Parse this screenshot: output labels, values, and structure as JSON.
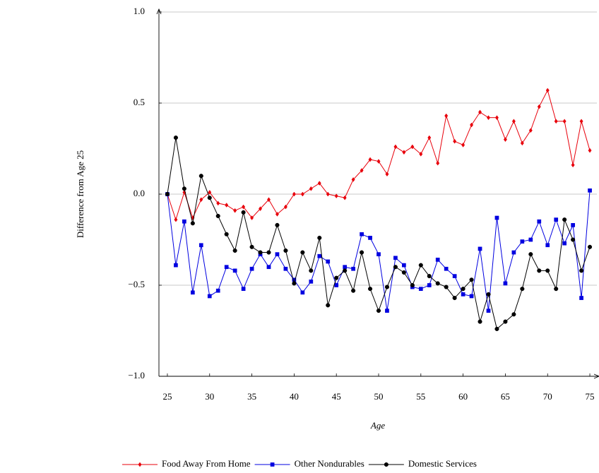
{
  "chart_data": {
    "type": "line",
    "xlabel": "Age",
    "ylabel": "Difference from Age 25",
    "x": [
      25,
      26,
      27,
      28,
      29,
      30,
      31,
      32,
      33,
      34,
      35,
      36,
      37,
      38,
      39,
      40,
      41,
      42,
      43,
      44,
      45,
      46,
      47,
      48,
      49,
      50,
      51,
      52,
      53,
      54,
      55,
      56,
      57,
      58,
      59,
      60,
      61,
      62,
      63,
      64,
      65,
      66,
      67,
      68,
      69,
      70,
      71,
      72,
      73,
      74,
      75
    ],
    "series": [
      {
        "name": "Food Away From Home",
        "color": "#e8000b",
        "marker": "diamond",
        "values": [
          0,
          -0.14,
          0.01,
          -0.13,
          -0.03,
          0.01,
          -0.05,
          -0.06,
          -0.09,
          -0.07,
          -0.13,
          -0.08,
          -0.03,
          -0.11,
          -0.07,
          0,
          0,
          0.03,
          0.06,
          0,
          -0.01,
          -0.02,
          0.08,
          0.13,
          0.19,
          0.18,
          0.11,
          0.26,
          0.23,
          0.26,
          0.22,
          0.31,
          0.17,
          0.43,
          0.29,
          0.27,
          0.38,
          0.45,
          0.42,
          0.42,
          0.3,
          0.4,
          0.28,
          0.35,
          0.48,
          0.57,
          0.4,
          0.4,
          0.16,
          0.4,
          0.24
        ]
      },
      {
        "name": "Other Nondurables",
        "color": "#0000e0",
        "marker": "square",
        "values": [
          0,
          -0.39,
          -0.15,
          -0.54,
          -0.28,
          -0.56,
          -0.53,
          -0.4,
          -0.42,
          -0.52,
          -0.41,
          -0.33,
          -0.4,
          -0.33,
          -0.41,
          -0.47,
          -0.54,
          -0.48,
          -0.34,
          -0.37,
          -0.5,
          -0.4,
          -0.41,
          -0.22,
          -0.24,
          -0.33,
          -0.64,
          -0.35,
          -0.39,
          -0.51,
          -0.52,
          -0.5,
          -0.36,
          -0.41,
          -0.45,
          -0.55,
          -0.56,
          -0.3,
          -0.64,
          -0.13,
          -0.49,
          -0.32,
          -0.26,
          -0.25,
          -0.15,
          -0.28,
          -0.14,
          -0.27,
          -0.17,
          -0.57,
          0.02
        ]
      },
      {
        "name": "Domestic Services",
        "color": "#000000",
        "marker": "circle",
        "values": [
          0,
          0.31,
          0.03,
          -0.16,
          0.1,
          -0.02,
          -0.12,
          -0.22,
          -0.31,
          -0.1,
          -0.29,
          -0.32,
          -0.32,
          -0.17,
          -0.31,
          -0.49,
          -0.32,
          -0.42,
          -0.24,
          -0.61,
          -0.46,
          -0.42,
          -0.53,
          -0.32,
          -0.52,
          -0.64,
          -0.51,
          -0.4,
          -0.43,
          -0.5,
          -0.39,
          -0.45,
          -0.49,
          -0.51,
          -0.57,
          -0.52,
          -0.47,
          -0.7,
          -0.55,
          -0.74,
          -0.7,
          -0.66,
          -0.52,
          -0.33,
          -0.42,
          -0.42,
          -0.52,
          -0.14,
          -0.25,
          -0.42,
          -0.29
        ]
      }
    ],
    "xlim": [
      24,
      76
    ],
    "ylim": [
      -1,
      1
    ],
    "xticks": [
      25,
      30,
      35,
      40,
      45,
      50,
      55,
      60,
      65,
      70,
      75
    ],
    "yticks": [
      {
        "value": -1,
        "label": "−1.0"
      },
      {
        "value": -0.5,
        "label": "−0.5"
      },
      {
        "value": 0,
        "label": "0.0"
      },
      {
        "value": 0.5,
        "label": "0.5"
      },
      {
        "value": 1,
        "label": "1.0"
      }
    ],
    "grid": true,
    "legend": "bottom"
  }
}
